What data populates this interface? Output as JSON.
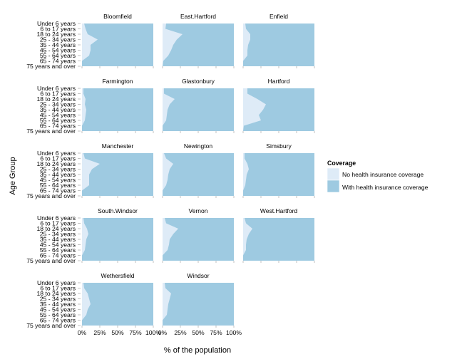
{
  "chart_data": {
    "type": "area",
    "title": "",
    "xlabel": "% of the population",
    "ylabel": "Age Group",
    "x_ticks": [
      "0%",
      "25%",
      "50%",
      "75%",
      "100%"
    ],
    "xlim": [
      0,
      100
    ],
    "age_groups": [
      "Under 6 years",
      "6 to 17 years",
      "18 to 24 years",
      "25 - 34 years",
      "35 - 44 years",
      "45 - 54 years",
      "55 - 64 years",
      "65 - 74 years",
      "75 years and over"
    ],
    "legend": {
      "title": "Coverage",
      "position": "right",
      "entries": [
        {
          "label": "No health insurance coverage",
          "color": "#deebf7"
        },
        {
          "label": "With health insurance coverage",
          "color": "#9ecae1"
        }
      ]
    },
    "series_name_uninsured": "No health insurance coverage",
    "series_name_insured": "With health insurance coverage",
    "facets": [
      {
        "name": "Bloomfield",
        "uninsured_pct": [
          3,
          5,
          8,
          22,
          12,
          12,
          10,
          0,
          0
        ]
      },
      {
        "name": "East.Hartford",
        "uninsured_pct": [
          5,
          4,
          28,
          20,
          15,
          12,
          8,
          1,
          0
        ]
      },
      {
        "name": "Enfield",
        "uninsured_pct": [
          3,
          4,
          10,
          10,
          7,
          6,
          6,
          0,
          0
        ]
      },
      {
        "name": "Farmington",
        "uninsured_pct": [
          2,
          2,
          5,
          4,
          6,
          5,
          4,
          0,
          0
        ]
      },
      {
        "name": "Glastonbury",
        "uninsured_pct": [
          2,
          2,
          17,
          10,
          7,
          6,
          5,
          0,
          0
        ]
      },
      {
        "name": "Hartford",
        "uninsured_pct": [
          6,
          6,
          20,
          32,
          28,
          22,
          25,
          1,
          0
        ]
      },
      {
        "name": "Manchester",
        "uninsured_pct": [
          2,
          4,
          25,
          14,
          10,
          10,
          10,
          0,
          0
        ]
      },
      {
        "name": "Newington",
        "uninsured_pct": [
          2,
          5,
          15,
          10,
          8,
          7,
          5,
          0,
          0
        ]
      },
      {
        "name": "Simsbury",
        "uninsured_pct": [
          2,
          2,
          6,
          8,
          5,
          4,
          3,
          0,
          0
        ]
      },
      {
        "name": "South.Windsor",
        "uninsured_pct": [
          2,
          3,
          7,
          9,
          6,
          5,
          4,
          0,
          0
        ]
      },
      {
        "name": "Vernon",
        "uninsured_pct": [
          3,
          5,
          22,
          15,
          10,
          9,
          7,
          0,
          0
        ]
      },
      {
        "name": "West.Hartford",
        "uninsured_pct": [
          2,
          4,
          13,
          8,
          5,
          4,
          4,
          0,
          0
        ]
      },
      {
        "name": "Wethersfield",
        "uninsured_pct": [
          2,
          3,
          8,
          10,
          12,
          8,
          6,
          0,
          0
        ]
      },
      {
        "name": "Windsor",
        "uninsured_pct": [
          3,
          4,
          12,
          10,
          8,
          7,
          6,
          0,
          0
        ]
      }
    ]
  }
}
